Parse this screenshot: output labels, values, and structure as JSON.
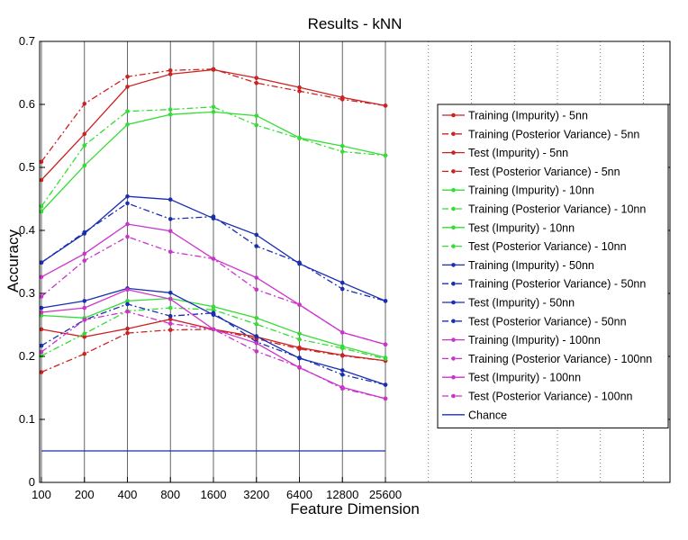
{
  "chart_data": {
    "type": "line",
    "title": "Results - kNN",
    "xlabel": "Feature Dimension",
    "ylabel": "Accuracy",
    "x_scale": "log2",
    "x": [
      100,
      200,
      400,
      800,
      1600,
      3200,
      6400,
      12800,
      25600
    ],
    "x_tick_labels": [
      "100",
      "200",
      "400",
      "800",
      "1600",
      "3200",
      "6400",
      "12800",
      "25600"
    ],
    "ylim": [
      0,
      0.7
    ],
    "y_ticks": [
      0,
      0.1,
      0.2,
      0.3,
      0.4,
      0.5,
      0.6,
      0.7
    ],
    "y_tick_labels": [
      "0",
      "0.1",
      "0.2",
      "0.3",
      "0.4",
      "0.5",
      "0.6",
      "0.7"
    ],
    "grid": "vertical lines at x ticks",
    "legend_position": "right",
    "series": [
      {
        "name": "Training (Impurity) - 5nn",
        "color": "#cc2222",
        "style": "solid",
        "values": [
          0.48,
          0.553,
          0.628,
          0.648,
          0.655,
          0.642,
          0.627,
          0.611,
          0.598
        ]
      },
      {
        "name": "Training (Posterior Variance) - 5nn",
        "color": "#cc2222",
        "style": "dashdot",
        "values": [
          0.509,
          0.601,
          0.644,
          0.654,
          0.656,
          0.634,
          0.621,
          0.608,
          0.598
        ]
      },
      {
        "name": "Test (Impurity) - 5nn",
        "color": "#cc2222",
        "style": "solid",
        "values": [
          0.243,
          0.231,
          0.244,
          0.259,
          0.243,
          0.231,
          0.214,
          0.202,
          0.193
        ]
      },
      {
        "name": "Test (Posterior Variance) - 5nn",
        "color": "#cc2222",
        "style": "dashdot",
        "values": [
          0.175,
          0.204,
          0.237,
          0.242,
          0.243,
          0.228,
          0.212,
          0.201,
          0.193
        ]
      },
      {
        "name": "Training (Impurity) - 10nn",
        "color": "#33dd33",
        "style": "solid",
        "values": [
          0.43,
          0.503,
          0.568,
          0.584,
          0.588,
          0.582,
          0.547,
          0.534,
          0.519
        ]
      },
      {
        "name": "Training (Posterior Variance) - 10nn",
        "color": "#33dd33",
        "style": "dashdot",
        "values": [
          0.438,
          0.535,
          0.589,
          0.592,
          0.596,
          0.567,
          0.546,
          0.525,
          0.519
        ]
      },
      {
        "name": "Test (Impurity) - 10nn",
        "color": "#33dd33",
        "style": "solid",
        "values": [
          0.265,
          0.261,
          0.288,
          0.292,
          0.279,
          0.261,
          0.236,
          0.216,
          0.198
        ]
      },
      {
        "name": "Test (Posterior Variance) - 10nn",
        "color": "#33dd33",
        "style": "dashdot",
        "values": [
          0.201,
          0.236,
          0.272,
          0.277,
          0.274,
          0.251,
          0.227,
          0.213,
          0.196
        ]
      },
      {
        "name": "Training (Impurity) - 50nn",
        "color": "#1a2eb0",
        "style": "solid",
        "values": [
          0.349,
          0.395,
          0.454,
          0.449,
          0.419,
          0.393,
          0.347,
          0.317,
          0.288
        ]
      },
      {
        "name": "Training (Posterior Variance) - 50nn",
        "color": "#1a2eb0",
        "style": "dashdot",
        "values": [
          0.349,
          0.397,
          0.443,
          0.418,
          0.422,
          0.375,
          0.349,
          0.307,
          0.288
        ]
      },
      {
        "name": "Test (Impurity) - 50nn",
        "color": "#1a2eb0",
        "style": "solid",
        "values": [
          0.277,
          0.288,
          0.308,
          0.301,
          0.266,
          0.232,
          0.197,
          0.178,
          0.155
        ]
      },
      {
        "name": "Test (Posterior Variance) - 50nn",
        "color": "#1a2eb0",
        "style": "dashdot",
        "values": [
          0.217,
          0.258,
          0.283,
          0.264,
          0.269,
          0.223,
          0.198,
          0.171,
          0.155
        ]
      },
      {
        "name": "Training (Impurity) - 100nn",
        "color": "#cc33cc",
        "style": "solid",
        "values": [
          0.326,
          0.363,
          0.41,
          0.399,
          0.355,
          0.325,
          0.282,
          0.238,
          0.219
        ]
      },
      {
        "name": "Training (Posterior Variance) - 100nn",
        "color": "#cc33cc",
        "style": "dashdot",
        "values": [
          0.295,
          0.352,
          0.39,
          0.366,
          0.355,
          0.306,
          0.282,
          0.238,
          0.219
        ]
      },
      {
        "name": "Test (Impurity) - 100nn",
        "color": "#cc33cc",
        "style": "solid",
        "values": [
          0.27,
          0.277,
          0.306,
          0.291,
          0.243,
          0.221,
          0.182,
          0.151,
          0.133
        ]
      },
      {
        "name": "Test (Posterior Variance) - 100nn",
        "color": "#cc33cc",
        "style": "dashdot",
        "values": [
          0.207,
          0.258,
          0.271,
          0.252,
          0.243,
          0.208,
          0.183,
          0.149,
          0.133
        ]
      },
      {
        "name": "Chance",
        "color": "#1a2eb0",
        "style": "solid",
        "marker": "none",
        "values": [
          0.05,
          0.05,
          0.05,
          0.05,
          0.05,
          0.05,
          0.05,
          0.05,
          0.05
        ]
      }
    ]
  }
}
